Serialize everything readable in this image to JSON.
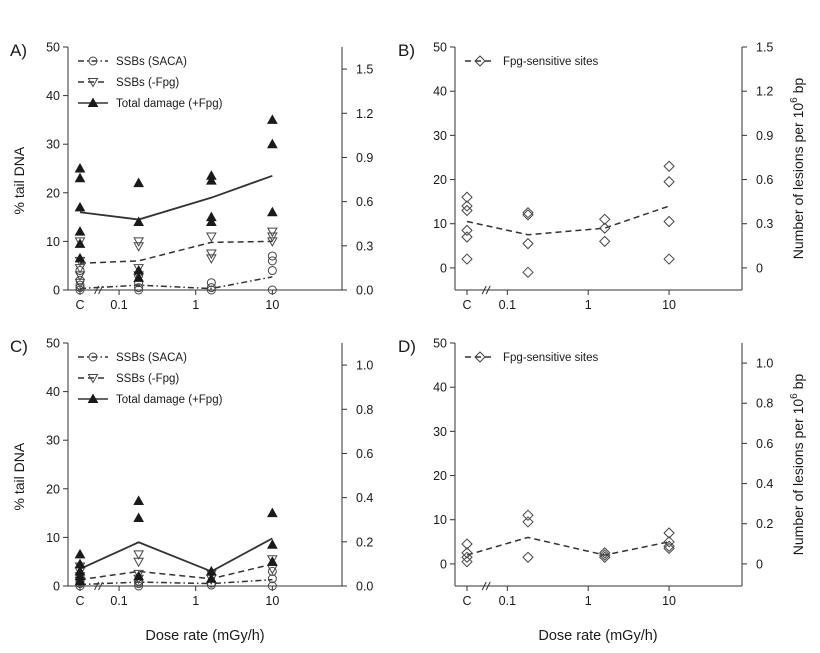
{
  "figure": {
    "x_axis_label": "Dose rate (mGy/h)"
  },
  "chart_data": [
    {
      "panel": "A)",
      "type": "scatter",
      "left_axis": {
        "label": "% tail DNA",
        "ylim": [
          0,
          50
        ],
        "ticks": [
          "0",
          "10",
          "20",
          "30",
          "40",
          "50"
        ]
      },
      "right_axis": {
        "label": "",
        "ylim": [
          0,
          1.65
        ],
        "ticks": [
          "0.0",
          "0.3",
          "0.6",
          "0.9",
          "1.2",
          "1.5"
        ]
      },
      "x_ticks": [
        "C",
        "0.1",
        "1",
        "10"
      ],
      "legend": {
        "placement": "top-left",
        "entries": [
          "SSBs (SACA)",
          "SSBs (-Fpg)",
          "Total damage (+Fpg)"
        ]
      },
      "series": [
        {
          "name": "SSBs (SACA)",
          "marker": "circle",
          "line": "dash-dot",
          "points": [
            [
              "C",
              0.5
            ],
            [
              "C",
              1
            ],
            [
              "C",
              2
            ],
            [
              "C",
              4
            ],
            [
              "C",
              0
            ],
            [
              0.18,
              0.5
            ],
            [
              0.18,
              1.5
            ],
            [
              0.18,
              3
            ],
            [
              0.18,
              0
            ],
            [
              1.6,
              0
            ],
            [
              1.6,
              0.5
            ],
            [
              1.6,
              1.5
            ],
            [
              10,
              0
            ],
            [
              10,
              4
            ],
            [
              10,
              6
            ],
            [
              10,
              7
            ]
          ],
          "trend": [
            [
              "C",
              0.3
            ],
            [
              0.18,
              1
            ],
            [
              1.6,
              0.3
            ],
            [
              10,
              2.7
            ]
          ]
        },
        {
          "name": "SSBs (-Fpg)",
          "marker": "triangle-down",
          "line": "dashed",
          "points": [
            [
              "C",
              1.5
            ],
            [
              "C",
              3
            ],
            [
              "C",
              4.5
            ],
            [
              "C",
              6
            ],
            [
              "C",
              10
            ],
            [
              0.18,
              3
            ],
            [
              0.18,
              4.5
            ],
            [
              0.18,
              9
            ],
            [
              0.18,
              10
            ],
            [
              1.6,
              6.5
            ],
            [
              1.6,
              7.5
            ],
            [
              1.6,
              11
            ],
            [
              10,
              10
            ],
            [
              10,
              11
            ],
            [
              10,
              12
            ]
          ],
          "trend": [
            [
              "C",
              5.5
            ],
            [
              0.18,
              6
            ],
            [
              1.6,
              9.8
            ],
            [
              10,
              10
            ]
          ]
        },
        {
          "name": "Total damage (+Fpg)",
          "marker": "triangle-up",
          "line": "solid",
          "points": [
            [
              "C",
              6.5
            ],
            [
              "C",
              9.5
            ],
            [
              "C",
              12
            ],
            [
              "C",
              17
            ],
            [
              "C",
              23
            ],
            [
              "C",
              25
            ],
            [
              0.18,
              2.5
            ],
            [
              0.18,
              4
            ],
            [
              0.18,
              14
            ],
            [
              0.18,
              22
            ],
            [
              1.6,
              14
            ],
            [
              1.6,
              15
            ],
            [
              1.6,
              22.5
            ],
            [
              1.6,
              23.5
            ],
            [
              10,
              16
            ],
            [
              10,
              30
            ],
            [
              10,
              35
            ]
          ],
          "trend": [
            [
              "C",
              16
            ],
            [
              0.18,
              14.5
            ],
            [
              1.6,
              19
            ],
            [
              10,
              23.5
            ]
          ]
        }
      ]
    },
    {
      "panel": "B)",
      "type": "scatter",
      "left_axis": {
        "label": "",
        "ylim": [
          -5,
          50
        ],
        "ticks": [
          "0",
          "10",
          "20",
          "30",
          "40",
          "50"
        ]
      },
      "right_axis": {
        "label": "Number of lesions per 10",
        "label_sup": "6",
        "label_tail": " bp",
        "ylim": [
          -0.15,
          1.5
        ],
        "ticks": [
          "0",
          "0.3",
          "0.6",
          "0.9",
          "1.2",
          "1.5"
        ]
      },
      "x_ticks": [
        "C",
        "0.1",
        "1",
        "10"
      ],
      "legend": {
        "placement": "top-left",
        "entries": [
          "Fpg-sensitive sites"
        ]
      },
      "series": [
        {
          "name": "Fpg-sensitive sites",
          "marker": "diamond",
          "line": "dashed",
          "points": [
            [
              "C",
              2
            ],
            [
              "C",
              7
            ],
            [
              "C",
              8.5
            ],
            [
              "C",
              13
            ],
            [
              "C",
              14
            ],
            [
              "C",
              16
            ],
            [
              0.18,
              -1
            ],
            [
              0.18,
              5.5
            ],
            [
              0.18,
              12
            ],
            [
              0.18,
              12.5
            ],
            [
              1.6,
              6
            ],
            [
              1.6,
              9
            ],
            [
              1.6,
              11
            ],
            [
              10,
              2
            ],
            [
              10,
              10.5
            ],
            [
              10,
              19.5
            ],
            [
              10,
              23
            ]
          ],
          "trend": [
            [
              "C",
              10.5
            ],
            [
              0.18,
              7.5
            ],
            [
              1.6,
              9
            ],
            [
              10,
              14
            ]
          ]
        }
      ]
    },
    {
      "panel": "C)",
      "type": "scatter",
      "left_axis": {
        "label": "% tail DNA",
        "ylim": [
          0,
          50
        ],
        "ticks": [
          "0",
          "10",
          "20",
          "30",
          "40",
          "50"
        ]
      },
      "right_axis": {
        "label": "",
        "ylim": [
          0,
          1.1
        ],
        "ticks": [
          "0.0",
          "0.2",
          "0.4",
          "0.6",
          "0.8",
          "1.0"
        ]
      },
      "x_ticks": [
        "C",
        "0.1",
        "1",
        "10"
      ],
      "legend": {
        "placement": "top-left",
        "entries": [
          "SSBs (SACA)",
          "SSBs (-Fpg)",
          "Total damage (+Fpg)"
        ]
      },
      "series": [
        {
          "name": "SSBs (SACA)",
          "marker": "circle",
          "line": "dash-dot",
          "points": [
            [
              "C",
              0
            ],
            [
              "C",
              0.5
            ],
            [
              "C",
              1
            ],
            [
              "C",
              2
            ],
            [
              0.18,
              0
            ],
            [
              0.18,
              0.5
            ],
            [
              0.18,
              1
            ],
            [
              1.6,
              0.2
            ],
            [
              1.6,
              0.6
            ],
            [
              10,
              0
            ],
            [
              10,
              1.5
            ],
            [
              10,
              3
            ]
          ],
          "trend": [
            [
              "C",
              0.3
            ],
            [
              0.18,
              0.8
            ],
            [
              1.6,
              0.5
            ],
            [
              10,
              1.3
            ]
          ]
        },
        {
          "name": "SSBs (-Fpg)",
          "marker": "triangle-down",
          "line": "dashed",
          "points": [
            [
              "C",
              1
            ],
            [
              "C",
              2
            ],
            [
              "C",
              3
            ],
            [
              "C",
              4
            ],
            [
              0.18,
              1.5
            ],
            [
              0.18,
              2.5
            ],
            [
              0.18,
              5
            ],
            [
              0.18,
              6.5
            ],
            [
              1.6,
              1.5
            ],
            [
              1.6,
              2.5
            ],
            [
              10,
              3.5
            ],
            [
              10,
              5.5
            ]
          ],
          "trend": [
            [
              "C",
              1.3
            ],
            [
              0.18,
              3
            ],
            [
              1.6,
              1.5
            ],
            [
              10,
              4.5
            ]
          ]
        },
        {
          "name": "Total damage (+Fpg)",
          "marker": "triangle-up",
          "line": "solid",
          "points": [
            [
              "C",
              1
            ],
            [
              "C",
              2
            ],
            [
              "C",
              3
            ],
            [
              "C",
              4.5
            ],
            [
              "C",
              6.5
            ],
            [
              0.18,
              2
            ],
            [
              0.18,
              14
            ],
            [
              0.18,
              17.5
            ],
            [
              1.6,
              1.5
            ],
            [
              1.6,
              3
            ],
            [
              10,
              5
            ],
            [
              10,
              8.5
            ],
            [
              10,
              15
            ]
          ],
          "trend": [
            [
              "C",
              3.5
            ],
            [
              0.18,
              9
            ],
            [
              1.6,
              3
            ],
            [
              10,
              9.8
            ]
          ]
        }
      ]
    },
    {
      "panel": "D)",
      "type": "scatter",
      "left_axis": {
        "label": "",
        "ylim": [
          -5,
          50
        ],
        "ticks": [
          "0",
          "10",
          "20",
          "30",
          "40",
          "50"
        ]
      },
      "right_axis": {
        "label": "Number of lesions per 10",
        "label_sup": "6",
        "label_tail": " bp",
        "ylim": [
          -0.11,
          1.1
        ],
        "ticks": [
          "0",
          "0.2",
          "0.4",
          "0.6",
          "0.8",
          "1.0"
        ]
      },
      "x_ticks": [
        "C",
        "0.1",
        "1",
        "10"
      ],
      "legend": {
        "placement": "top-left",
        "entries": [
          "Fpg-sensitive sites"
        ]
      },
      "series": [
        {
          "name": "Fpg-sensitive sites",
          "marker": "diamond",
          "line": "dashed",
          "points": [
            [
              "C",
              0.5
            ],
            [
              "C",
              1.5
            ],
            [
              "C",
              2.5
            ],
            [
              "C",
              4.5
            ],
            [
              0.18,
              1.5
            ],
            [
              0.18,
              9.5
            ],
            [
              0.18,
              11
            ],
            [
              1.6,
              1.5
            ],
            [
              1.6,
              2
            ],
            [
              1.6,
              2.5
            ],
            [
              10,
              3.5
            ],
            [
              10,
              4
            ],
            [
              10,
              5
            ],
            [
              10,
              7
            ]
          ],
          "trend": [
            [
              "C",
              2
            ],
            [
              0.18,
              6
            ],
            [
              1.6,
              2
            ],
            [
              10,
              5
            ]
          ]
        }
      ]
    }
  ]
}
